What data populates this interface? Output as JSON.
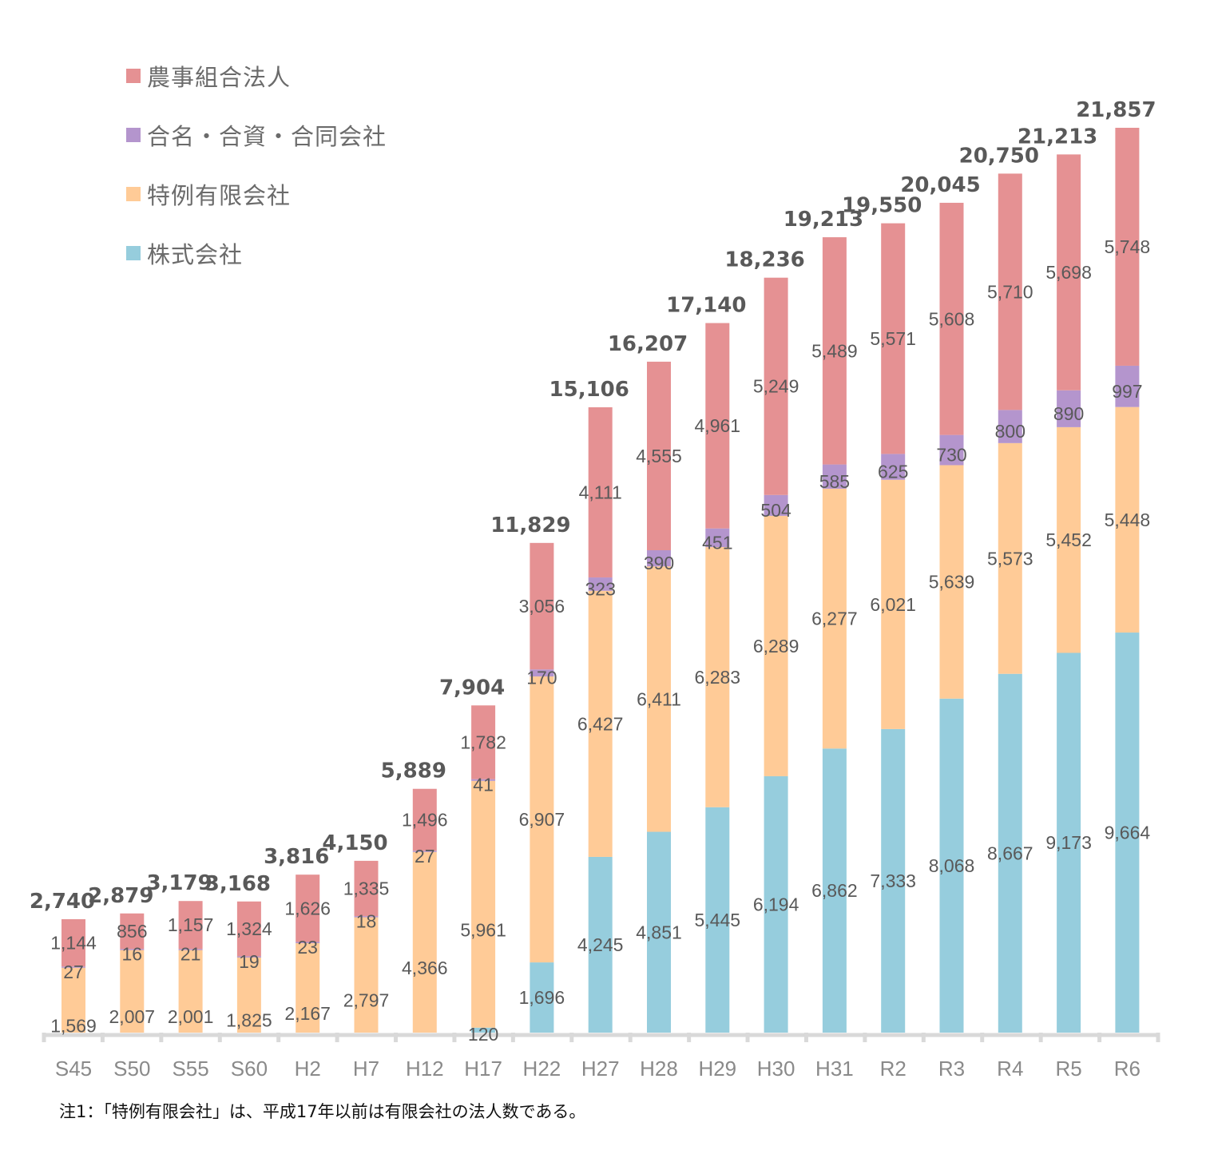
{
  "chart_data": {
    "type": "bar",
    "stacked": true,
    "title": "",
    "xlabel": "",
    "ylabel": "",
    "ylim": [
      0,
      21857
    ],
    "grid": false,
    "legend_position": "top-left",
    "categories": [
      "S45",
      "S50",
      "S55",
      "S60",
      "H2",
      "H7",
      "H12",
      "H17",
      "H22",
      "H27",
      "H28",
      "H29",
      "H30",
      "H31",
      "R2",
      "R3",
      "R4",
      "R5",
      "R6"
    ],
    "series": [
      {
        "name": "株式会社",
        "color": "#96cddd",
        "values": [
          null,
          null,
          null,
          null,
          null,
          null,
          null,
          120,
          1696,
          4245,
          4851,
          5445,
          6194,
          6862,
          7333,
          8068,
          8667,
          9173,
          9664
        ]
      },
      {
        "name": "特例有限会社",
        "color": "#ffcb97",
        "values": [
          1569,
          2007,
          2001,
          1825,
          2167,
          2797,
          4366,
          5961,
          6907,
          6427,
          6411,
          6283,
          6289,
          6277,
          6021,
          5639,
          5573,
          5452,
          5448
        ]
      },
      {
        "name": "合名・合資・合同会社",
        "color": "#b495cd",
        "values": [
          27,
          16,
          21,
          19,
          23,
          18,
          27,
          41,
          170,
          323,
          390,
          451,
          504,
          585,
          625,
          730,
          800,
          890,
          997
        ]
      },
      {
        "name": "農事組合法人",
        "color": "#e59193",
        "values": [
          1144,
          856,
          1157,
          1324,
          1626,
          1335,
          1496,
          1782,
          3056,
          4111,
          4555,
          4961,
          5249,
          5489,
          5571,
          5608,
          5710,
          5698,
          5748
        ]
      }
    ],
    "totals": [
      2740,
      2879,
      3179,
      3168,
      3816,
      4150,
      5889,
      7904,
      11829,
      15106,
      16207,
      17140,
      18236,
      19213,
      19550,
      20045,
      20750,
      21213,
      21857
    ],
    "annotations": [
      "注1：「特例有限会社」は、平成17年以前は有限会社の法人数である。"
    ]
  },
  "legend": {
    "items": [
      {
        "label": "農事組合法人",
        "color": "#e59193"
      },
      {
        "label": "合名・合資・合同会社",
        "color": "#b495cd"
      },
      {
        "label": "特例有限会社",
        "color": "#ffcb97"
      },
      {
        "label": "株式会社",
        "color": "#96cddd"
      }
    ]
  },
  "note": "注1：「特例有限会社」は、平成17年以前は有限会社の法人数である。"
}
